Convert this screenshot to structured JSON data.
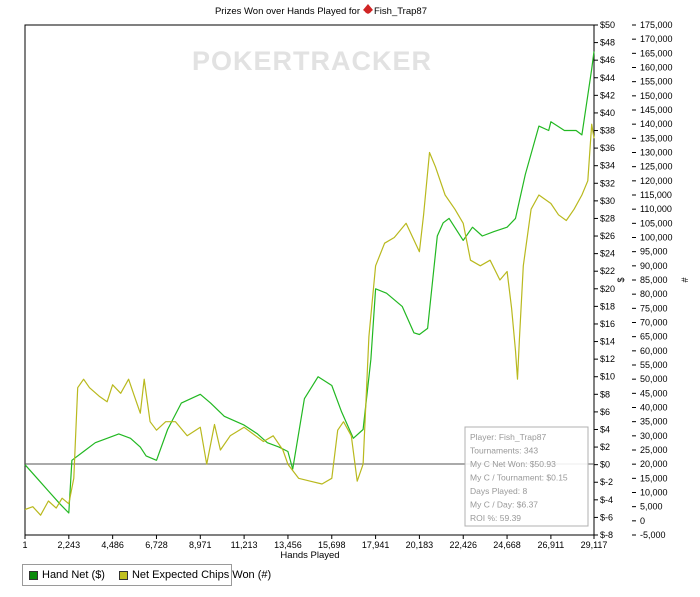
{
  "chart_data": {
    "type": "line",
    "title": "Prizes Won over Hands Played for",
    "player": "Fish_Trap87",
    "watermark": "POKERTRACKER",
    "xlabel": "Hands Played",
    "ylabel_left": "$",
    "ylabel_right": "#",
    "xlim": [
      1,
      29117
    ],
    "x_ticks": [
      "1",
      "2,243",
      "4,486",
      "6,728",
      "8,971",
      "11,213",
      "13,456",
      "15,698",
      "17,941",
      "20,183",
      "22,426",
      "24,668",
      "26,911",
      "29,117"
    ],
    "ylim_left": [
      -8,
      50
    ],
    "ylim_right": [
      -5000,
      175000
    ],
    "y_ticks_left": [
      "$50",
      "$48",
      "$46",
      "$44",
      "$42",
      "$40",
      "$38",
      "$36",
      "$34",
      "$32",
      "$30",
      "$28",
      "$26",
      "$24",
      "$22",
      "$20",
      "$18",
      "$16",
      "$14",
      "$12",
      "$10",
      "$8",
      "$6",
      "$4",
      "$2",
      "$0",
      "$-2",
      "$-4",
      "$-6",
      "$-8"
    ],
    "y_ticks_right": [
      "175,000",
      "170,000",
      "165,000",
      "160,000",
      "155,000",
      "150,000",
      "145,000",
      "140,000",
      "135,000",
      "130,000",
      "125,000",
      "120,000",
      "115,000",
      "110,000",
      "105,000",
      "100,000",
      "95,000",
      "90,000",
      "85,000",
      "80,000",
      "75,000",
      "70,000",
      "65,000",
      "60,000",
      "55,000",
      "50,000",
      "45,000",
      "40,000",
      "35,000",
      "30,000",
      "25,000",
      "20,000",
      "15,000",
      "10,000",
      "5,000",
      "0",
      "-5,000"
    ],
    "grid": false,
    "legend_position": "bottom-left",
    "series": [
      {
        "name": "Hand Net ($)",
        "axis": "left",
        "color": "#22b822",
        "swatch": "#0a8a0a",
        "x": [
          1,
          600,
          1200,
          1800,
          2243,
          2400,
          3000,
          3600,
          4200,
          4800,
          5400,
          5900,
          6200,
          6728,
          7300,
          8000,
          8971,
          9500,
          10200,
          11213,
          11900,
          12400,
          13000,
          13456,
          13700,
          14300,
          15000,
          15698,
          16200,
          16800,
          17300,
          17700,
          17941,
          18500,
          19300,
          19900,
          20183,
          20600,
          21100,
          21400,
          21700,
          22426,
          22900,
          23400,
          24000,
          24668,
          25100,
          25300,
          25600,
          26300,
          26800,
          26911,
          27600,
          28200,
          28500,
          28800,
          29000,
          29117
        ],
        "y": [
          0,
          -1.5,
          -3,
          -4.5,
          -5.5,
          0.5,
          1.5,
          2.5,
          3,
          3.5,
          3,
          2,
          1,
          0.5,
          4,
          7,
          8,
          7,
          5.5,
          4.5,
          3.5,
          2.5,
          2,
          1.5,
          -0.5,
          7.5,
          10,
          9,
          6,
          3,
          4,
          12,
          20,
          19.5,
          18,
          15,
          14.8,
          15.5,
          26,
          27.5,
          28,
          25.5,
          27,
          26,
          26.5,
          27,
          28,
          30,
          33,
          38.5,
          38,
          39,
          38,
          38,
          37.5,
          42,
          45,
          47
        ]
      },
      {
        "name": "Net Expected Chips Won (#)",
        "axis": "right",
        "color": "#b9b91e",
        "swatch": "#c0c020",
        "x": [
          1,
          400,
          800,
          1200,
          1600,
          1900,
          2243,
          2500,
          2700,
          3000,
          3300,
          3800,
          4200,
          4486,
          4900,
          5300,
          5600,
          5900,
          6100,
          6400,
          6728,
          7200,
          7700,
          8300,
          8971,
          9300,
          9700,
          10000,
          10500,
          11213,
          11800,
          12200,
          12700,
          13200,
          13456,
          14000,
          14600,
          15200,
          15698,
          16000,
          16300,
          16700,
          17000,
          17300,
          17600,
          17941,
          18400,
          18900,
          19500,
          20183,
          20400,
          20700,
          21000,
          21500,
          22000,
          22426,
          22800,
          23300,
          23800,
          24300,
          24668,
          24900,
          25100,
          25200,
          25300,
          25500,
          25900,
          26300,
          26911,
          27300,
          27700,
          28100,
          28500,
          28800,
          29000,
          29117
        ],
        "y": [
          4000,
          5000,
          2000,
          7000,
          4500,
          8000,
          6000,
          15000,
          47000,
          50000,
          47000,
          44000,
          42000,
          48000,
          45000,
          50000,
          44000,
          38000,
          50000,
          35000,
          32000,
          35000,
          35000,
          30000,
          33000,
          20000,
          34000,
          25000,
          30000,
          33000,
          30000,
          28000,
          30000,
          25000,
          20000,
          15000,
          14000,
          13000,
          15000,
          32000,
          35000,
          30000,
          14000,
          20000,
          65000,
          90000,
          98000,
          100000,
          105000,
          95000,
          108000,
          130000,
          125000,
          115000,
          110000,
          105000,
          92000,
          90000,
          92000,
          85000,
          88000,
          75000,
          60000,
          50000,
          64000,
          90000,
          110000,
          115000,
          112000,
          108000,
          106000,
          110000,
          115000,
          120000,
          140000,
          135000
        ]
      }
    ],
    "info_box": [
      "Player: Fish_Trap87",
      "Tournaments: 343",
      "My C Net Won: $50.93",
      "My C / Tournament: $0.15",
      "Days Played: 8",
      "My C / Day: $6.37",
      "ROI %: 59.39"
    ],
    "colors": {
      "axis": "#000000",
      "zero_line": "#555555",
      "watermark": "#e2e2e2",
      "info_text": "#999999",
      "info_border": "#b0b0b0",
      "logo": "#d02525"
    }
  }
}
